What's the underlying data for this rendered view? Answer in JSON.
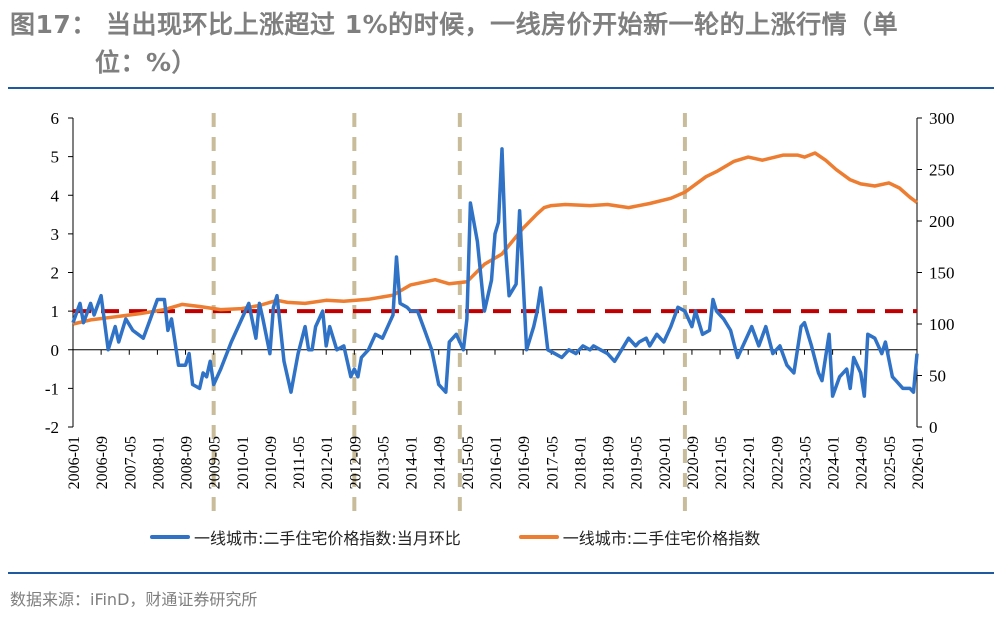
{
  "header": {
    "title_line1": "图17：  当出现环比上涨超过 1%的时候，一线房价开始新一轮的上涨行情（单",
    "title_line2": "位：%）"
  },
  "footer": {
    "source": "数据来源：iFinD，财通证券研究所"
  },
  "colors": {
    "mom_series": "#2f72c6",
    "index_series": "#ed7d31",
    "threshold_line": "#c00000",
    "marker_lines": "#c9bc9a",
    "rule": "#1f5aa0"
  },
  "chart_data": {
    "type": "line",
    "title": "当出现环比上涨超过 1%的时候，一线房价开始新一轮的上涨行情（单位：%）",
    "xlabel": "",
    "ylabel_left": "%",
    "ylabel_right": "",
    "ylim_left": [
      -2,
      6
    ],
    "ylim_right": [
      0,
      300
    ],
    "yticks_left": [
      -2,
      -1,
      0,
      1,
      2,
      3,
      4,
      5,
      6
    ],
    "yticks_right": [
      0,
      50,
      100,
      150,
      200,
      250,
      300
    ],
    "x_tick_labels": [
      "2006-01",
      "2006-09",
      "2007-05",
      "2008-01",
      "2008-09",
      "2009-05",
      "2010-01",
      "2010-09",
      "2011-05",
      "2012-01",
      "2012-09",
      "2013-05",
      "2014-01",
      "2014-09",
      "2015-05",
      "2016-01",
      "2016-09",
      "2017-05",
      "2018-01",
      "2018-09",
      "2019-05",
      "2020-01",
      "2020-09",
      "2021-05",
      "2022-01",
      "2022-09",
      "2023-05",
      "2024-01",
      "2024-09",
      "2025-05",
      "2026-01"
    ],
    "grid": false,
    "legend_position": "bottom",
    "reference_line": {
      "axis": "left",
      "value": 1,
      "style": "dashed",
      "color": "#c00000"
    },
    "vertical_markers": [
      "2009-05",
      "2012-09",
      "2015-03",
      "2020-07"
    ],
    "series": [
      {
        "name": "一线城市:二手住宅价格指数:当月环比",
        "axis": "left",
        "color": "#2f72c6",
        "points": [
          [
            "2006-01",
            0.7
          ],
          [
            "2006-03",
            1.2
          ],
          [
            "2006-04",
            0.7
          ],
          [
            "2006-06",
            1.2
          ],
          [
            "2006-07",
            0.9
          ],
          [
            "2006-09",
            1.4
          ],
          [
            "2006-11",
            0.0
          ],
          [
            "2007-01",
            0.6
          ],
          [
            "2007-02",
            0.2
          ],
          [
            "2007-04",
            0.8
          ],
          [
            "2007-06",
            0.5
          ],
          [
            "2007-09",
            0.3
          ],
          [
            "2007-11",
            0.8
          ],
          [
            "2008-01",
            1.3
          ],
          [
            "2008-03",
            1.3
          ],
          [
            "2008-04",
            0.5
          ],
          [
            "2008-05",
            0.8
          ],
          [
            "2008-07",
            -0.4
          ],
          [
            "2008-09",
            -0.4
          ],
          [
            "2008-10",
            -0.1
          ],
          [
            "2008-11",
            -0.9
          ],
          [
            "2009-01",
            -1.0
          ],
          [
            "2009-02",
            -0.6
          ],
          [
            "2009-03",
            -0.7
          ],
          [
            "2009-04",
            -0.3
          ],
          [
            "2009-05",
            -0.9
          ],
          [
            "2009-07",
            -0.5
          ],
          [
            "2009-10",
            0.2
          ],
          [
            "2010-01",
            0.8
          ],
          [
            "2010-03",
            1.2
          ],
          [
            "2010-05",
            0.3
          ],
          [
            "2010-06",
            1.2
          ],
          [
            "2010-07",
            0.8
          ],
          [
            "2010-09",
            -0.1
          ],
          [
            "2010-10",
            1.1
          ],
          [
            "2010-11",
            1.4
          ],
          [
            "2011-01",
            -0.3
          ],
          [
            "2011-03",
            -1.1
          ],
          [
            "2011-05",
            -0.1
          ],
          [
            "2011-07",
            0.6
          ],
          [
            "2011-08",
            0.0
          ],
          [
            "2011-09",
            0.0
          ],
          [
            "2011-10",
            0.6
          ],
          [
            "2011-12",
            1.0
          ],
          [
            "2012-01",
            0.1
          ],
          [
            "2012-02",
            0.6
          ],
          [
            "2012-04",
            0.0
          ],
          [
            "2012-06",
            0.1
          ],
          [
            "2012-08",
            -0.7
          ],
          [
            "2012-09",
            -0.5
          ],
          [
            "2012-10",
            -0.7
          ],
          [
            "2012-11",
            -0.2
          ],
          [
            "2013-01",
            0.0
          ],
          [
            "2013-03",
            0.4
          ],
          [
            "2013-05",
            0.3
          ],
          [
            "2013-07",
            0.7
          ],
          [
            "2013-08",
            0.9
          ],
          [
            "2013-09",
            2.4
          ],
          [
            "2013-10",
            1.2
          ],
          [
            "2013-12",
            1.1
          ],
          [
            "2014-01",
            1.0
          ],
          [
            "2014-03",
            1.0
          ],
          [
            "2014-05",
            0.5
          ],
          [
            "2014-07",
            0.0
          ],
          [
            "2014-09",
            -0.9
          ],
          [
            "2014-11",
            -1.1
          ],
          [
            "2014-12",
            0.2
          ],
          [
            "2015-02",
            0.4
          ],
          [
            "2015-04",
            0.0
          ],
          [
            "2015-05",
            0.8
          ],
          [
            "2015-06",
            3.8
          ],
          [
            "2015-08",
            2.8
          ],
          [
            "2015-10",
            1.0
          ],
          [
            "2015-12",
            1.8
          ],
          [
            "2016-01",
            3.0
          ],
          [
            "2016-02",
            3.3
          ],
          [
            "2016-03",
            5.2
          ],
          [
            "2016-04",
            2.6
          ],
          [
            "2016-05",
            1.4
          ],
          [
            "2016-07",
            1.7
          ],
          [
            "2016-08",
            3.6
          ],
          [
            "2016-10",
            0.0
          ],
          [
            "2016-12",
            0.6
          ],
          [
            "2017-01",
            1.0
          ],
          [
            "2017-02",
            1.6
          ],
          [
            "2017-04",
            0.0
          ],
          [
            "2017-06",
            -0.1
          ],
          [
            "2017-08",
            -0.2
          ],
          [
            "2017-10",
            0.0
          ],
          [
            "2017-12",
            -0.1
          ],
          [
            "2018-02",
            0.1
          ],
          [
            "2018-04",
            0.0
          ],
          [
            "2018-05",
            0.1
          ],
          [
            "2018-07",
            0.0
          ],
          [
            "2018-09",
            -0.1
          ],
          [
            "2018-11",
            -0.3
          ],
          [
            "2019-01",
            0.0
          ],
          [
            "2019-03",
            0.3
          ],
          [
            "2019-05",
            0.1
          ],
          [
            "2019-06",
            0.2
          ],
          [
            "2019-08",
            0.3
          ],
          [
            "2019-09",
            0.1
          ],
          [
            "2019-11",
            0.4
          ],
          [
            "2020-01",
            0.2
          ],
          [
            "2020-03",
            0.6
          ],
          [
            "2020-05",
            1.1
          ],
          [
            "2020-07",
            1.0
          ],
          [
            "2020-09",
            0.6
          ],
          [
            "2020-10",
            1.0
          ],
          [
            "2020-12",
            0.4
          ],
          [
            "2021-02",
            0.5
          ],
          [
            "2021-03",
            1.3
          ],
          [
            "2021-04",
            1.0
          ],
          [
            "2021-06",
            0.8
          ],
          [
            "2021-08",
            0.5
          ],
          [
            "2021-10",
            -0.2
          ],
          [
            "2021-12",
            0.2
          ],
          [
            "2022-02",
            0.6
          ],
          [
            "2022-04",
            0.1
          ],
          [
            "2022-06",
            0.6
          ],
          [
            "2022-08",
            -0.1
          ],
          [
            "2022-10",
            0.1
          ],
          [
            "2022-12",
            -0.4
          ],
          [
            "2023-02",
            -0.6
          ],
          [
            "2023-04",
            0.6
          ],
          [
            "2023-05",
            0.7
          ],
          [
            "2023-07",
            0.1
          ],
          [
            "2023-09",
            -0.6
          ],
          [
            "2023-10",
            -0.8
          ],
          [
            "2023-12",
            0.4
          ],
          [
            "2024-01",
            -1.2
          ],
          [
            "2024-03",
            -0.7
          ],
          [
            "2024-05",
            -0.5
          ],
          [
            "2024-06",
            -1.0
          ],
          [
            "2024-07",
            -0.2
          ],
          [
            "2024-09",
            -0.6
          ],
          [
            "2024-10",
            -1.2
          ],
          [
            "2024-11",
            0.4
          ],
          [
            "2025-01",
            0.3
          ],
          [
            "2025-03",
            -0.1
          ],
          [
            "2025-04",
            0.2
          ],
          [
            "2025-06",
            -0.7
          ],
          [
            "2025-07",
            -0.8
          ],
          [
            "2025-09",
            -1.0
          ],
          [
            "2025-11",
            -1.0
          ],
          [
            "2025-12",
            -1.1
          ],
          [
            "2026-01",
            -0.1
          ]
        ]
      },
      {
        "name": "一线城市:二手住宅价格指数",
        "axis": "right",
        "color": "#ed7d31",
        "points": [
          [
            "2006-01",
            100
          ],
          [
            "2006-06",
            104
          ],
          [
            "2007-01",
            107
          ],
          [
            "2007-08",
            110
          ],
          [
            "2008-03",
            114
          ],
          [
            "2008-08",
            119
          ],
          [
            "2009-01",
            117
          ],
          [
            "2009-07",
            114
          ],
          [
            "2010-01",
            115
          ],
          [
            "2010-06",
            118
          ],
          [
            "2010-11",
            123
          ],
          [
            "2011-02",
            121
          ],
          [
            "2011-07",
            120
          ],
          [
            "2012-01",
            123
          ],
          [
            "2012-06",
            122
          ],
          [
            "2013-01",
            124
          ],
          [
            "2013-08",
            128
          ],
          [
            "2014-01",
            138
          ],
          [
            "2014-08",
            143
          ],
          [
            "2014-12",
            139
          ],
          [
            "2015-05",
            141
          ],
          [
            "2015-10",
            158
          ],
          [
            "2016-03",
            168
          ],
          [
            "2016-09",
            193
          ],
          [
            "2017-01",
            207
          ],
          [
            "2017-03",
            213
          ],
          [
            "2017-05",
            215
          ],
          [
            "2017-09",
            216
          ],
          [
            "2018-04",
            215
          ],
          [
            "2018-09",
            216
          ],
          [
            "2019-03",
            213
          ],
          [
            "2019-09",
            217
          ],
          [
            "2020-03",
            222
          ],
          [
            "2020-07",
            228
          ],
          [
            "2021-01",
            243
          ],
          [
            "2021-04",
            248
          ],
          [
            "2021-09",
            258
          ],
          [
            "2022-01",
            262
          ],
          [
            "2022-05",
            259
          ],
          [
            "2022-11",
            264
          ],
          [
            "2023-03",
            264
          ],
          [
            "2023-05",
            262
          ],
          [
            "2023-08",
            266
          ],
          [
            "2023-11",
            259
          ],
          [
            "2024-02",
            250
          ],
          [
            "2024-06",
            240
          ],
          [
            "2024-09",
            236
          ],
          [
            "2025-01",
            234
          ],
          [
            "2025-05",
            237
          ],
          [
            "2025-08",
            232
          ],
          [
            "2025-11",
            223
          ],
          [
            "2026-01",
            218
          ]
        ]
      }
    ]
  },
  "legend": {
    "items": [
      {
        "label": "一线城市:二手住宅价格指数:当月环比",
        "color": "#2f72c6"
      },
      {
        "label": "一线城市:二手住宅价格指数",
        "color": "#ed7d31"
      }
    ]
  }
}
